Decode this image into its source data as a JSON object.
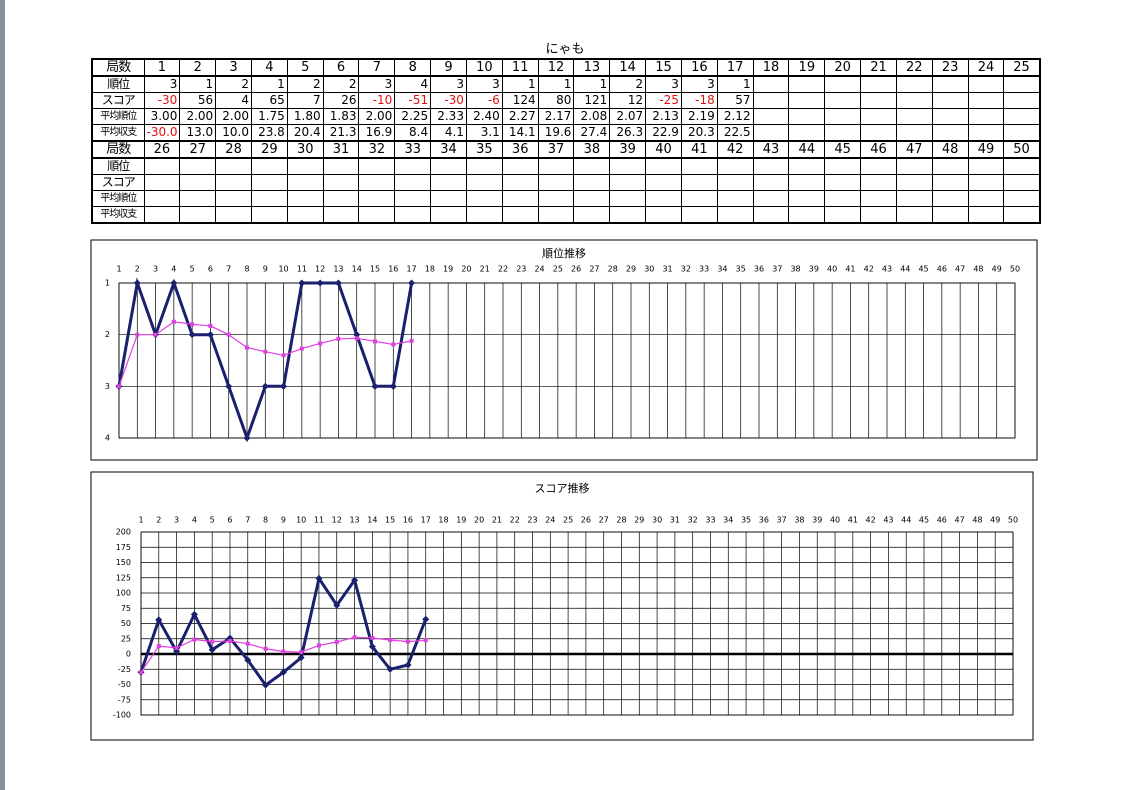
{
  "title": "にゃも",
  "table": {
    "blocks": [
      {
        "header": "局数",
        "columns": [
          1,
          2,
          3,
          4,
          5,
          6,
          7,
          8,
          9,
          10,
          11,
          12,
          13,
          14,
          15,
          16,
          17,
          18,
          19,
          20,
          21,
          22,
          23,
          24,
          25
        ],
        "rows": [
          {
            "label": "順位",
            "cells": [
              "3",
              "1",
              "2",
              "1",
              "2",
              "2",
              "3",
              "4",
              "3",
              "3",
              "1",
              "1",
              "1",
              "2",
              "3",
              "3",
              "1"
            ]
          },
          {
            "label": "スコア",
            "cells": [
              "-30",
              "56",
              "4",
              "65",
              "7",
              "26",
              "-10",
              "-51",
              "-30",
              "-6",
              "124",
              "80",
              "121",
              "12",
              "-25",
              "-18",
              "57"
            ]
          },
          {
            "label": "平均順位",
            "cells": [
              "3.00",
              "2.00",
              "2.00",
              "1.75",
              "1.80",
              "1.83",
              "2.00",
              "2.25",
              "2.33",
              "2.40",
              "2.27",
              "2.17",
              "2.08",
              "2.07",
              "2.13",
              "2.19",
              "2.12"
            ]
          },
          {
            "label": "平均収支",
            "cells": [
              "-30.0",
              "13.0",
              "10.0",
              "23.8",
              "20.4",
              "21.3",
              "16.9",
              "8.4",
              "4.1",
              "3.1",
              "14.1",
              "19.6",
              "27.4",
              "26.3",
              "22.9",
              "20.3",
              "22.5"
            ]
          }
        ]
      },
      {
        "header": "局数",
        "columns": [
          26,
          27,
          28,
          29,
          30,
          31,
          32,
          33,
          34,
          35,
          36,
          37,
          38,
          39,
          40,
          41,
          42,
          43,
          44,
          45,
          46,
          47,
          48,
          49,
          50
        ],
        "rows": [
          {
            "label": "順位"
          },
          {
            "label": "スコア"
          },
          {
            "label": "平均順位"
          },
          {
            "label": "平均収支"
          }
        ]
      }
    ]
  },
  "chart_data": [
    {
      "type": "line",
      "title": "順位推移",
      "x": [
        1,
        2,
        3,
        4,
        5,
        6,
        7,
        8,
        9,
        10,
        11,
        12,
        13,
        14,
        15,
        16,
        17
      ],
      "xlim": [
        1,
        50
      ],
      "xticks": [
        1,
        2,
        3,
        4,
        5,
        6,
        7,
        8,
        9,
        10,
        11,
        12,
        13,
        14,
        15,
        16,
        17,
        18,
        19,
        20,
        21,
        22,
        23,
        24,
        25,
        26,
        27,
        28,
        29,
        30,
        31,
        32,
        33,
        34,
        35,
        36,
        37,
        38,
        39,
        40,
        41,
        42,
        43,
        44,
        45,
        46,
        47,
        48,
        49,
        50
      ],
      "ylim": [
        4,
        1
      ],
      "yticks": [
        1,
        2,
        3,
        4
      ],
      "grid": true,
      "series": [
        {
          "color": "#1a1f6e",
          "marker": "diamond",
          "values": [
            3,
            1,
            2,
            1,
            2,
            2,
            3,
            4,
            3,
            3,
            1,
            1,
            1,
            2,
            3,
            3,
            1
          ]
        },
        {
          "color": "#e040e0",
          "marker": "square",
          "values": [
            3.0,
            2.0,
            2.0,
            1.75,
            1.8,
            1.83,
            2.0,
            2.25,
            2.33,
            2.4,
            2.27,
            2.17,
            2.08,
            2.07,
            2.13,
            2.19,
            2.12
          ]
        }
      ]
    },
    {
      "type": "line",
      "title": "スコア推移",
      "x": [
        1,
        2,
        3,
        4,
        5,
        6,
        7,
        8,
        9,
        10,
        11,
        12,
        13,
        14,
        15,
        16,
        17
      ],
      "xlim": [
        1,
        50
      ],
      "xticks": [
        1,
        2,
        3,
        4,
        5,
        6,
        7,
        8,
        9,
        10,
        11,
        12,
        13,
        14,
        15,
        16,
        17,
        18,
        19,
        20,
        21,
        22,
        23,
        24,
        25,
        26,
        27,
        28,
        29,
        30,
        31,
        32,
        33,
        34,
        35,
        36,
        37,
        38,
        39,
        40,
        41,
        42,
        43,
        44,
        45,
        46,
        47,
        48,
        49,
        50
      ],
      "ylim": [
        -100,
        200
      ],
      "yticks": [
        -100,
        -75,
        -50,
        -25,
        0,
        25,
        50,
        75,
        100,
        125,
        150,
        175,
        200
      ],
      "grid": true,
      "series": [
        {
          "color": "#1a1f6e",
          "marker": "diamond",
          "values": [
            -30,
            56,
            4,
            65,
            7,
            26,
            -10,
            -51,
            -30,
            -6,
            124,
            80,
            121,
            12,
            -25,
            -18,
            57
          ]
        },
        {
          "color": "#e040e0",
          "marker": "square",
          "values": [
            -30.0,
            13.0,
            10.0,
            23.8,
            20.4,
            21.3,
            16.9,
            8.4,
            4.1,
            3.1,
            14.1,
            19.6,
            27.4,
            26.3,
            22.9,
            20.3,
            22.5
          ]
        }
      ]
    }
  ]
}
